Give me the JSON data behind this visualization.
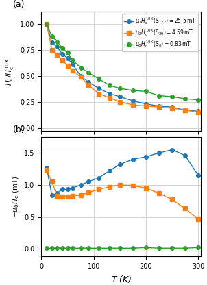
{
  "T": [
    10,
    20,
    30,
    40,
    50,
    60,
    75,
    90,
    110,
    130,
    150,
    175,
    200,
    225,
    250,
    275,
    300
  ],
  "panel_a": {
    "S177_blue": [
      1.0,
      0.82,
      0.78,
      0.71,
      0.67,
      0.61,
      0.5,
      0.44,
      0.38,
      0.33,
      0.3,
      0.26,
      0.23,
      0.21,
      0.2,
      0.17,
      0.16
    ],
    "S29_orange": [
      1.0,
      0.75,
      0.7,
      0.65,
      0.6,
      0.55,
      0.49,
      0.41,
      0.33,
      0.29,
      0.25,
      0.22,
      0.21,
      0.2,
      0.19,
      0.17,
      0.15
    ],
    "S0_green": [
      1.0,
      0.88,
      0.83,
      0.77,
      0.72,
      0.65,
      0.58,
      0.53,
      0.47,
      0.41,
      0.38,
      0.36,
      0.35,
      0.31,
      0.3,
      0.28,
      0.27
    ]
  },
  "panel_b": {
    "S177_blue": [
      1.27,
      0.84,
      0.87,
      0.93,
      0.93,
      0.95,
      1.0,
      1.05,
      1.11,
      1.22,
      1.32,
      1.4,
      1.44,
      1.5,
      1.55,
      1.46,
      1.15
    ],
    "S29_orange": [
      1.23,
      1.05,
      0.83,
      0.82,
      0.82,
      0.83,
      0.84,
      0.88,
      0.93,
      0.97,
      1.0,
      0.99,
      0.95,
      0.87,
      0.77,
      0.63,
      0.46
    ],
    "S0_green": [
      0.01,
      0.01,
      0.01,
      0.01,
      0.01,
      0.01,
      0.01,
      0.01,
      0.01,
      0.01,
      0.01,
      0.01,
      0.02,
      0.01,
      0.01,
      0.01,
      0.02
    ]
  },
  "colors": {
    "blue": "#1f77b4",
    "orange": "#ff7f0e",
    "green": "#2ca02c"
  },
  "legend_labels": [
    "$\\mu_0 H_\\mathrm{c}^{10\\,\\mathrm{K}}(\\mathrm{S}_{177}) = 25.5\\,\\mathrm{mT}$",
    "$\\mu_0 H_\\mathrm{c}^{10\\,\\mathrm{K}}(\\mathrm{S}_{29}) = 4.59\\,\\mathrm{mT}$",
    "$\\mu_0 H_\\mathrm{c}^{10\\,\\mathrm{K}}(\\mathrm{S}_{0}) = 0.83\\,\\mathrm{mT}$"
  ],
  "ylabel_a": "$H_\\mathrm{c}/H_\\mathrm{c}^{10\\,\\mathrm{K}}$",
  "ylabel_b": "$-\\mu_0 H_\\mathrm{e}$ (mT)",
  "xlabel": "$T$ (K)",
  "label_a": "(a)",
  "label_b": "(b)",
  "ylim_a": [
    -0.03,
    1.12
  ],
  "ylim_b": [
    -0.12,
    1.75
  ],
  "xlim": [
    0,
    305
  ],
  "xticks": [
    0,
    100,
    200,
    300
  ],
  "yticks_a": [
    0.0,
    0.25,
    0.5,
    0.75,
    1.0
  ],
  "yticks_b": [
    0.0,
    0.5,
    1.0,
    1.5
  ]
}
